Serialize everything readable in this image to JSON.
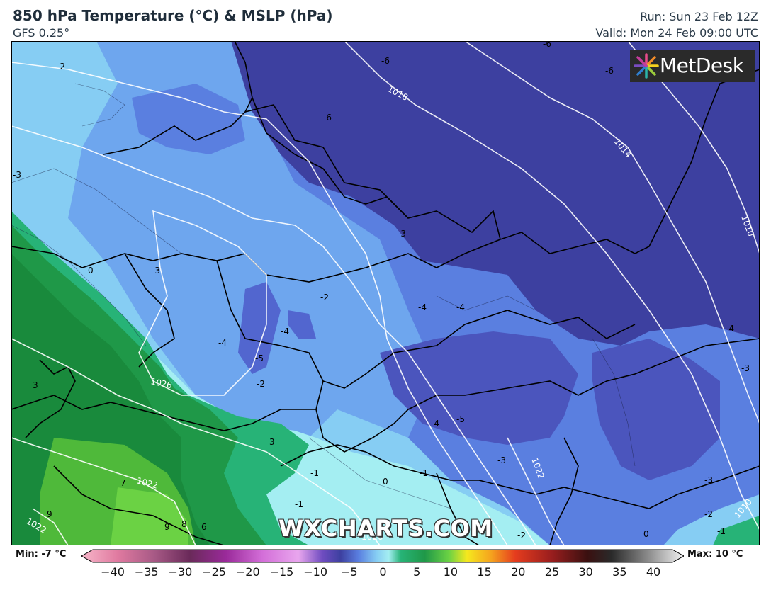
{
  "header": {
    "title": "850 hPa Temperature (°C) & MSLP (hPa)",
    "model": "GFS 0.25°",
    "run": "Run: Sun 23 Feb 12Z",
    "valid": "Valid: Mon 24 Feb 09:00 UTC"
  },
  "logo": {
    "text": "MetDesk",
    "icon": "starburst-logo-icon"
  },
  "watermark": "WXCHARTS.COM",
  "legend": {
    "min_label": "Min: -7 °C",
    "max_label": "Max: 10 °C",
    "ticks": [
      "−40",
      "−35",
      "−30",
      "−25",
      "−20",
      "−15",
      "−10",
      "−5",
      "0",
      "5",
      "10",
      "15",
      "20",
      "25",
      "30",
      "35",
      "40"
    ],
    "range": [
      -40,
      40
    ]
  },
  "temperature_labels": [
    "-2",
    "-3",
    "-6",
    "-6",
    "-6",
    "-6",
    "-3",
    "0",
    "-3",
    "-2",
    "-4",
    "-4",
    "-5",
    "-2",
    "-4",
    "-4",
    "-5",
    "-4",
    "-3",
    "-4",
    "3",
    "-1",
    "-1",
    "-1",
    "-3",
    "0",
    "3",
    "-3",
    "-2",
    "-1",
    "-2",
    "-2",
    "0",
    "7",
    "9",
    "9",
    "8",
    "6"
  ],
  "isobar_labels": [
    "1018",
    "1014",
    "1010",
    "1026",
    "1022",
    "1022",
    "1022",
    "1010",
    "1026"
  ],
  "colors": {
    "deep_cold": "#3b3f9e",
    "cold": "#4d63c9",
    "mid_blue": "#5f86e6",
    "light_blue": "#7cc0f0",
    "pale_cyan": "#9ff0f2",
    "teal": "#22b06e",
    "green": "#1e9442",
    "bright_green": "#5ec83a",
    "border": "#000000",
    "isobar": "#ffffff"
  }
}
